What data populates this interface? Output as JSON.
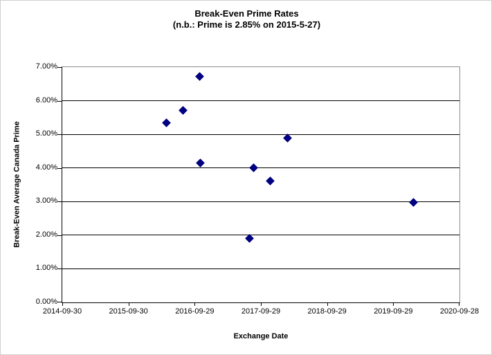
{
  "chart": {
    "title_line1": "Break-Even Prime Rates",
    "title_line2": "(n.b.: Prime is 2.85% on 2015-5-27)",
    "x_axis_title": "Exchange Date",
    "y_axis_title": "Break-Even Average Canada Prime",
    "marker_color": "#000080",
    "gridline_color": "#000000",
    "plot_border_color": "#8c8c8c",
    "axis_color": "#000000"
  },
  "chart_data": {
    "type": "scatter",
    "title": "Break-Even Prime Rates (n.b.: Prime is 2.85% on 2015-5-27)",
    "xlabel": "Exchange Date",
    "ylabel": "Break-Even Average Canada Prime",
    "x_range": [
      "2014-09-30",
      "2020-09-28"
    ],
    "ylim": [
      0,
      7
    ],
    "grid": true,
    "legend": false,
    "y_ticks": [
      {
        "v": 0,
        "label": "0.00%"
      },
      {
        "v": 1,
        "label": "1.00%"
      },
      {
        "v": 2,
        "label": "2.00%"
      },
      {
        "v": 3,
        "label": "3.00%"
      },
      {
        "v": 4,
        "label": "4.00%"
      },
      {
        "v": 5,
        "label": "5.00%"
      },
      {
        "v": 6,
        "label": "6.00%"
      },
      {
        "v": 7,
        "label": "7.00%"
      }
    ],
    "x_ticks": [
      {
        "date": "2014-09-30",
        "label": "2014-09-30"
      },
      {
        "date": "2015-09-30",
        "label": "2015-09-30"
      },
      {
        "date": "2016-09-29",
        "label": "2016-09-29"
      },
      {
        "date": "2017-09-29",
        "label": "2017-09-29"
      },
      {
        "date": "2018-09-29",
        "label": "2018-09-29"
      },
      {
        "date": "2019-09-29",
        "label": "2019-09-29"
      },
      {
        "date": "2020-09-28",
        "label": "2020-09-28"
      }
    ],
    "points": [
      {
        "date": "2016-04-26",
        "value": 5.35
      },
      {
        "date": "2016-07-27",
        "value": 5.72
      },
      {
        "date": "2016-10-26",
        "value": 6.72
      },
      {
        "date": "2016-10-30",
        "value": 4.14
      },
      {
        "date": "2017-07-28",
        "value": 1.9
      },
      {
        "date": "2017-08-21",
        "value": 4.0
      },
      {
        "date": "2017-11-21",
        "value": 3.62
      },
      {
        "date": "2018-02-23",
        "value": 4.9
      },
      {
        "date": "2020-01-19",
        "value": 2.97
      }
    ]
  }
}
